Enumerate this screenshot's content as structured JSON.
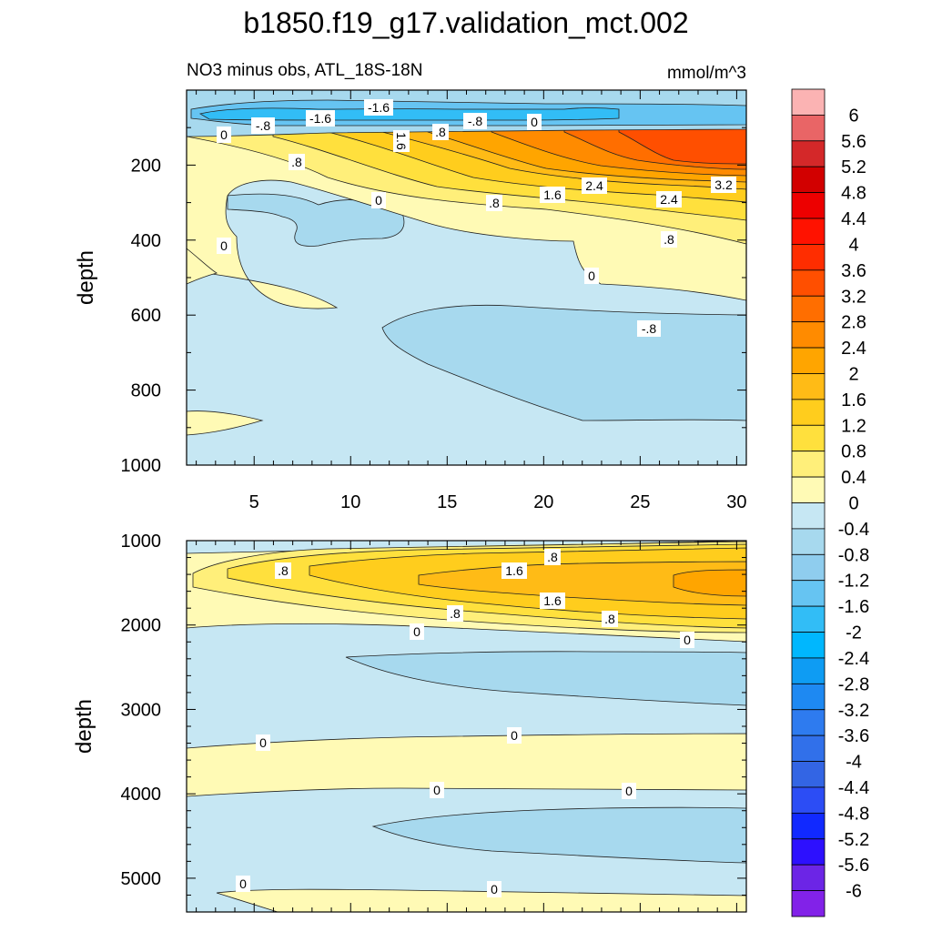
{
  "chart_data": {
    "type": "contour",
    "title": "b1850.f19_g17.validation_mct.002",
    "subtitle": "NO3 minus obs, ATL_18S-18N",
    "units": "mmol/m^3",
    "ylabel": "depth",
    "x_ticks": [
      "5",
      "10",
      "15",
      "20",
      "25",
      "30"
    ],
    "xlim": [
      1.5,
      30.5
    ],
    "top_panel": {
      "ylim": [
        0,
        1000
      ],
      "y_ticks": [
        "200",
        "400",
        "600",
        "800",
        "1000"
      ],
      "regions": [
        {
          "name": "deep-negative-band-0-to-minus-0.4",
          "level": -0.2
        },
        {
          "name": "minus-0.4-to-minus-0.8-patch-upper",
          "level": -0.6
        },
        {
          "name": "minus-0.4-to-minus-0.8-patch-lower",
          "level": -0.6
        },
        {
          "name": "positive-wedge-0-to-0.4",
          "level": 0.2
        },
        {
          "name": "positive-core-0.4-to-0.8",
          "level": 0.6
        },
        {
          "name": "positive-core-0.8-to-1.2",
          "level": 1.0
        },
        {
          "name": "positive-core-1.2-to-1.6",
          "level": 1.4
        },
        {
          "name": "positive-core-1.6-to-2.0",
          "level": 1.8
        },
        {
          "name": "positive-core-2.0-to-2.4",
          "level": 2.2
        },
        {
          "name": "positive-core-2.4-to-2.8",
          "level": 2.6
        },
        {
          "name": "positive-core-2.8-to-3.2",
          "level": 3.0
        },
        {
          "name": "positive-core-3.2-to-3.6",
          "level": 3.4
        },
        {
          "name": "surface-negative-minus-0.4",
          "level": -0.6
        },
        {
          "name": "surface-negative-minus-1.2",
          "level": -1.4
        },
        {
          "name": "surface-negative-minus-1.6",
          "level": -1.8
        },
        {
          "name": "bottom-left-positive-patch",
          "level": 0.2
        },
        {
          "name": "mid-left-positive-patch",
          "level": 0.2
        }
      ],
      "contour_labels": [
        "-1.6",
        "-.8",
        "-1.6",
        "-.8",
        "0",
        "0",
        ".8",
        "1.6",
        ".8",
        "2.4",
        "1.6",
        "2.4",
        "3.2",
        "0",
        ".8",
        ".8",
        "0",
        "0",
        "-.8"
      ]
    },
    "bottom_panel": {
      "ylim": [
        1000,
        5400
      ],
      "y_ticks": [
        "1000",
        "2000",
        "3000",
        "4000",
        "5000"
      ],
      "regions": [
        {
          "name": "background-0-to-minus-0.4",
          "level": -0.2
        },
        {
          "name": "nadw-positive-0-to-0.4",
          "level": 0.2
        },
        {
          "name": "nadw-positive-0.4-to-0.8",
          "level": 0.6
        },
        {
          "name": "nadw-positive-0.8-to-1.2",
          "level": 1.0
        },
        {
          "name": "nadw-positive-1.2-to-1.6",
          "level": 1.4
        },
        {
          "name": "nadw-positive-1.6-to-2.0",
          "level": 1.8
        },
        {
          "name": "nadw-positive-2.0-to-2.4",
          "level": 2.2
        },
        {
          "name": "negative-tongue-2500m",
          "level": -0.6
        },
        {
          "name": "positive-band-3500m",
          "level": 0.2
        },
        {
          "name": "negative-tongue-4500m",
          "level": -0.6
        },
        {
          "name": "positive-bottom-5200m",
          "level": 0.2
        }
      ],
      "contour_labels": [
        ".8",
        ".8",
        "1.6",
        "1.6",
        ".8",
        ".8",
        "0",
        "0",
        "0",
        "0",
        "0",
        "0",
        "0",
        "0"
      ]
    },
    "colorbar": {
      "labels": [
        "6",
        "5.6",
        "5.2",
        "4.8",
        "4.4",
        "4",
        "3.6",
        "3.2",
        "2.8",
        "2.4",
        "2",
        "1.6",
        "1.2",
        "0.8",
        "0.4",
        "0",
        "-0.4",
        "-0.8",
        "-1.2",
        "-1.6",
        "-2",
        "-2.4",
        "-2.8",
        "-3.2",
        "-3.6",
        "-4",
        "-4.4",
        "-4.8",
        "-5.2",
        "-5.6",
        "-6"
      ],
      "colors": [
        "#fbb3b3",
        "#e96566",
        "#d42829",
        "#d20000",
        "#ed0000",
        "#ff1200",
        "#ff2d00",
        "#ff4f00",
        "#ff6e00",
        "#ff8b00",
        "#ffa500",
        "#ffbb16",
        "#ffcd1d",
        "#ffe03d",
        "#ffef7a",
        "#fffab5",
        "#c6e7f3",
        "#a7d9ee",
        "#8fcdee",
        "#66c4f2",
        "#32bdf6",
        "#00b7fe",
        "#0e9cf3",
        "#1e89f2",
        "#2e7bef",
        "#3170ea",
        "#3365e4",
        "#2c4df5",
        "#1129ff",
        "#2d10fe",
        "#6c25e6",
        "#8222e8"
      ]
    }
  }
}
